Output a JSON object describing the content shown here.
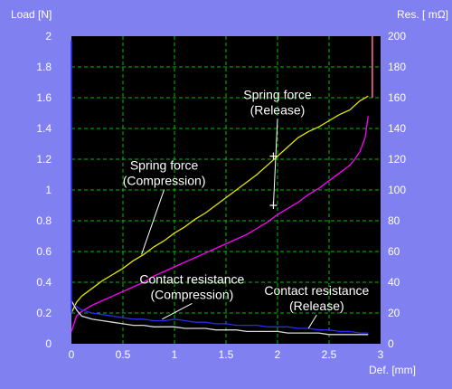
{
  "chart_data": {
    "type": "line",
    "title": "",
    "xlabel": "Def. [mm]",
    "ylabel_left": "Load [N]",
    "ylabel_right": "Res. [ mΩ]",
    "xlim": [
      0,
      3
    ],
    "ylim_left": [
      0,
      2
    ],
    "ylim_right": [
      0,
      200
    ],
    "grid": true,
    "background": "#000000",
    "page_background": "#8080f0",
    "x_ticks": [
      "0",
      "0.5",
      "1",
      "1.5",
      "2",
      "2.5",
      "3"
    ],
    "y_left_ticks": [
      "0",
      "0.2",
      "0.4",
      "0.6",
      "0.8",
      "1",
      "1.2",
      "1.4",
      "1.6",
      "1.8",
      "2"
    ],
    "y_right_ticks": [
      "0",
      "20",
      "40",
      "60",
      "80",
      "100",
      "120",
      "140",
      "160",
      "180",
      "200"
    ],
    "series": [
      {
        "axis": "left",
        "color": "#e6e600",
        "x": [
          0.0,
          0.05,
          0.1,
          0.2,
          0.3,
          0.4,
          0.5,
          0.6,
          0.7,
          0.8,
          0.9,
          1.0,
          1.1,
          1.2,
          1.3,
          1.4,
          1.5,
          1.6,
          1.7,
          1.8,
          1.9,
          2.0,
          2.1,
          2.2,
          2.3,
          2.4,
          2.5,
          2.6,
          2.7,
          2.8,
          2.88
        ],
        "values": [
          0.2,
          0.27,
          0.31,
          0.36,
          0.41,
          0.45,
          0.49,
          0.54,
          0.58,
          0.63,
          0.67,
          0.72,
          0.76,
          0.81,
          0.85,
          0.9,
          0.95,
          1.0,
          1.05,
          1.1,
          1.16,
          1.22,
          1.28,
          1.34,
          1.38,
          1.41,
          1.45,
          1.49,
          1.52,
          1.58,
          1.61
        ]
      },
      {
        "axis": "left",
        "color": "#ff00ff",
        "x": [
          0.0,
          0.05,
          0.1,
          0.2,
          0.3,
          0.4,
          0.5,
          0.6,
          0.7,
          0.8,
          0.9,
          1.0,
          1.1,
          1.2,
          1.3,
          1.4,
          1.5,
          1.6,
          1.7,
          1.8,
          1.9,
          2.0,
          2.1,
          2.2,
          2.3,
          2.4,
          2.5,
          2.6,
          2.7,
          2.75,
          2.8,
          2.85,
          2.88
        ],
        "values": [
          0.08,
          0.18,
          0.21,
          0.25,
          0.28,
          0.31,
          0.34,
          0.37,
          0.4,
          0.44,
          0.47,
          0.5,
          0.53,
          0.56,
          0.59,
          0.62,
          0.65,
          0.68,
          0.71,
          0.75,
          0.79,
          0.84,
          0.88,
          0.92,
          0.97,
          1.01,
          1.06,
          1.11,
          1.16,
          1.2,
          1.25,
          1.34,
          1.48
        ]
      },
      {
        "axis": "right",
        "color": "#2a2af0",
        "x": [
          0.0,
          0.03,
          0.1,
          0.2,
          0.3,
          0.4,
          0.5,
          0.6,
          0.7,
          0.8,
          0.9,
          1.0,
          1.1,
          1.2,
          1.3,
          1.4,
          1.5,
          1.6,
          1.7,
          1.8,
          1.9,
          2.0,
          2.1,
          2.2,
          2.3,
          2.4,
          2.5,
          2.6,
          2.7,
          2.8,
          2.88
        ],
        "values": [
          28,
          25,
          22,
          20,
          19,
          18,
          17,
          16,
          16,
          15,
          15,
          16,
          15,
          14,
          14,
          13,
          13,
          12,
          12,
          12,
          11,
          11,
          11,
          10,
          10,
          9,
          9,
          8,
          8,
          7,
          7
        ]
      },
      {
        "axis": "right",
        "color": "#d8d8d8",
        "x": [
          0.0,
          0.05,
          0.1,
          0.2,
          0.3,
          0.4,
          0.5,
          0.6,
          0.7,
          0.8,
          0.9,
          1.0,
          1.1,
          1.2,
          1.3,
          1.4,
          1.5,
          1.6,
          1.7,
          1.8,
          1.9,
          2.0,
          2.1,
          2.2,
          2.3,
          2.4,
          2.5,
          2.6,
          2.7,
          2.8,
          2.88
        ],
        "values": [
          28,
          22,
          18,
          16,
          15,
          14,
          13,
          12,
          12,
          11,
          11,
          11,
          10,
          10,
          10,
          9,
          9,
          9,
          8,
          8,
          8,
          8,
          7,
          7,
          7,
          7,
          6,
          6,
          6,
          6,
          6
        ]
      }
    ],
    "annotations": [
      {
        "lines": [
          "Spring force",
          "(Compression)"
        ],
        "text_x": 0.9,
        "text_y": 1.12,
        "point_x": 0.68,
        "point_y": 0.58,
        "marker": false
      },
      {
        "lines": [
          "Spring force",
          "(Release)"
        ],
        "text_x": 2.0,
        "text_y": 1.58,
        "point_x": 1.96,
        "point_y": 0.9,
        "marker": true
      },
      {
        "lines": [
          "Contact resistance",
          "(Compression)"
        ],
        "text_x": 1.17,
        "text_y": 0.38,
        "point_x": 0.88,
        "point_y": 0.16,
        "marker": false
      },
      {
        "lines": [
          "Contact resistance",
          "(Release)"
        ],
        "text_x": 2.38,
        "text_y": 0.305,
        "point_x": 2.3,
        "point_y": 0.1,
        "marker": false
      }
    ],
    "markers": [
      {
        "x": 1.96,
        "y": 1.22
      },
      {
        "x": 1.96,
        "y": 0.9
      }
    ],
    "edge_lines": [
      {
        "color": "#2a2af0",
        "x": 0.0,
        "y0": 0.2,
        "y1": 1.97
      },
      {
        "color": "#ff6090",
        "x": 2.92,
        "y0": 1.6,
        "y1": 2.0
      }
    ]
  }
}
